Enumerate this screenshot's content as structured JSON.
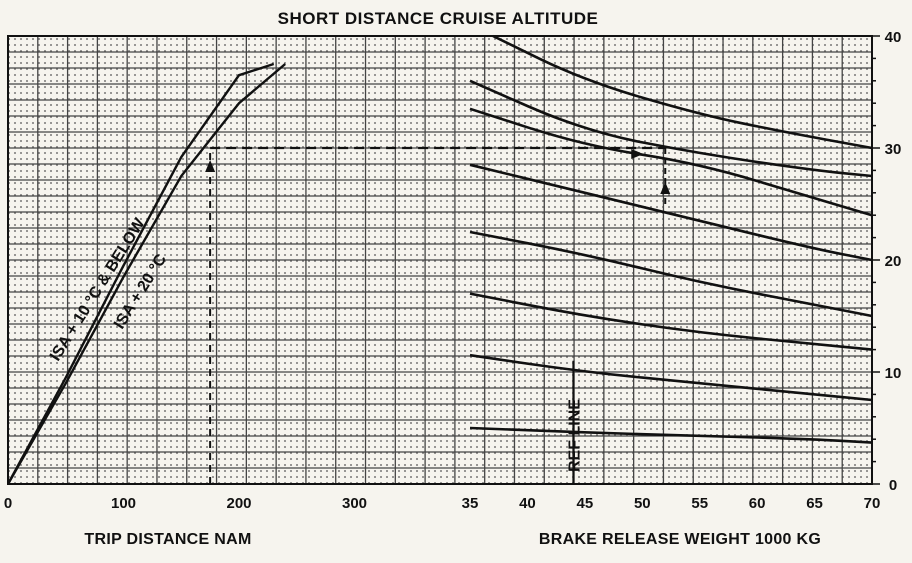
{
  "chart_data": {
    "type": "line",
    "title": "SHORT DISTANCE CRUISE ALTITUDE",
    "panels": [
      {
        "id": "trip-distance",
        "xlabel": "TRIP DISTANCE NAM",
        "xlim": [
          0,
          400
        ],
        "x_ticks": [
          "0",
          "100",
          "200",
          "300"
        ],
        "series": [
          {
            "name": "ISA + 10 °C & BELOW",
            "x": [
              0,
              50,
              100,
              150,
              200,
              230
            ],
            "y": [
              0,
              9.5,
              19.5,
              29.2,
              36.5,
              37.5
            ]
          },
          {
            "name": "ISA + 20 °C",
            "x": [
              0,
              50,
              100,
              150,
              200,
              240
            ],
            "y": [
              0,
              9,
              18.5,
              27.5,
              34,
              37.5
            ]
          }
        ]
      },
      {
        "id": "brake-release-weight",
        "xlabel": "BRAKE RELEASE WEIGHT   1000 KG",
        "xlim": [
          35,
          70
        ],
        "x_ticks": [
          "35",
          "40",
          "45",
          "50",
          "55",
          "60",
          "65",
          "70"
        ],
        "ref_line_label": "REF LINE",
        "ref_line_x": 44,
        "series": [
          {
            "x": [
              37,
              45,
              55,
              62,
              70
            ],
            "y": [
              40,
              36,
              33,
              31.5,
              30
            ]
          },
          {
            "x": [
              35,
              45,
              55,
              65,
              70
            ],
            "y": [
              36,
              31.5,
              29.5,
              28,
              27.5
            ]
          },
          {
            "x": [
              35,
              45,
              55,
              65,
              70
            ],
            "y": [
              33.5,
              30.2,
              28.6,
              25.5,
              24
            ]
          },
          {
            "x": [
              35,
              45,
              55,
              65,
              70
            ],
            "y": [
              28.5,
              26,
              23.5,
              21,
              20
            ]
          },
          {
            "x": [
              35,
              45,
              55,
              65,
              70
            ],
            "y": [
              22.5,
              20.5,
              18,
              16,
              15
            ]
          },
          {
            "x": [
              35,
              45,
              55,
              65,
              70
            ],
            "y": [
              17,
              15,
              13.5,
              12.5,
              12
            ]
          },
          {
            "x": [
              35,
              45,
              55,
              65,
              70
            ],
            "y": [
              11.5,
              10,
              9,
              8,
              7.5
            ]
          },
          {
            "x": [
              35,
              45,
              55,
              65,
              70
            ],
            "y": [
              5,
              4.6,
              4.3,
              4,
              3.7
            ]
          }
        ]
      }
    ],
    "y_right": {
      "ylim": [
        0,
        40
      ],
      "ticks": [
        "0",
        "10",
        "20",
        "30",
        "40"
      ]
    },
    "example_path": {
      "distance": 175,
      "altitude": 30,
      "weight": 52
    },
    "grid": true
  },
  "colors": {
    "line": "#111111",
    "grid_major": "#444444",
    "background": "#f6f4ee"
  }
}
